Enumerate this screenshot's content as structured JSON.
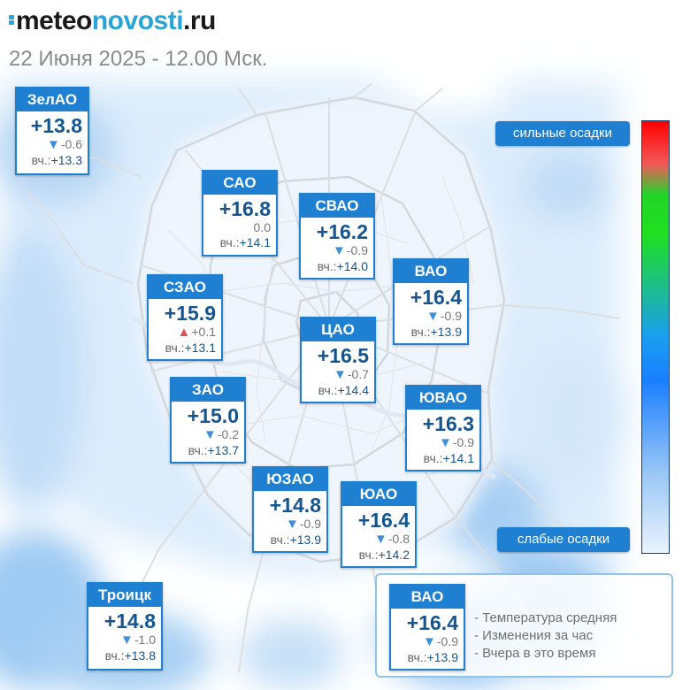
{
  "header": {
    "logo_part1": "meteo",
    "logo_part2": "novosti",
    "logo_part3": ".ru",
    "datetime": "22 Июня 2025 - 12.00 Мск."
  },
  "labels": {
    "yesterday_prefix": "вч.:"
  },
  "districts": [
    {
      "key": "zelao",
      "name": "ЗелАО",
      "temp": "+13.8",
      "change": "-0.6",
      "trend": "down",
      "yesterday": "+13.3"
    },
    {
      "key": "sao",
      "name": "САО",
      "temp": "+16.8",
      "change": "0.0",
      "trend": "none",
      "yesterday": "+14.1"
    },
    {
      "key": "svao",
      "name": "СВАО",
      "temp": "+16.2",
      "change": "-0.9",
      "trend": "down",
      "yesterday": "+14.0"
    },
    {
      "key": "vao",
      "name": "ВАО",
      "temp": "+16.4",
      "change": "-0.9",
      "trend": "down",
      "yesterday": "+13.9"
    },
    {
      "key": "szao",
      "name": "СЗАО",
      "temp": "+15.9",
      "change": "+0.1",
      "trend": "up",
      "yesterday": "+13.1"
    },
    {
      "key": "cao",
      "name": "ЦАО",
      "temp": "+16.5",
      "change": "-0.7",
      "trend": "down",
      "yesterday": "+14.4"
    },
    {
      "key": "zao",
      "name": "ЗАО",
      "temp": "+15.0",
      "change": "-0.2",
      "trend": "down",
      "yesterday": "+13.7"
    },
    {
      "key": "yuvao",
      "name": "ЮВАО",
      "temp": "+16.3",
      "change": "-0.9",
      "trend": "down",
      "yesterday": "+14.1"
    },
    {
      "key": "yuzao",
      "name": "ЮЗАО",
      "temp": "+14.8",
      "change": "-0.9",
      "trend": "down",
      "yesterday": "+13.9"
    },
    {
      "key": "yuao",
      "name": "ЮАО",
      "temp": "+16.4",
      "change": "-0.8",
      "trend": "down",
      "yesterday": "+14.2"
    },
    {
      "key": "troitsk",
      "name": "Троицк",
      "temp": "+14.8",
      "change": "-1.0",
      "trend": "down",
      "yesterday": "+13.8"
    }
  ],
  "scale": {
    "top_label": "сильные осадки",
    "bottom_label": "слабые осадки",
    "colors": [
      "#ff0000",
      "#f05a5a",
      "#22d42a",
      "#1a9ef0",
      "#1a7fff",
      "#9cc8f5",
      "#e9f3fd"
    ]
  },
  "legend": {
    "example": {
      "name": "ВАО",
      "temp": "+16.4",
      "change": "-0.9",
      "trend": "down",
      "yesterday": "+13.9"
    },
    "items": [
      "- Температура средняя",
      "- Изменения за час",
      "- Вчера в это время"
    ]
  },
  "colors": {
    "accent": "#1f7fd0",
    "temp_text": "#14558f",
    "brand": "#2aa3d6",
    "down_arrow": "#3f8fd8",
    "up_arrow": "#e05050",
    "date_text": "#8b8b8b"
  },
  "icons": {
    "trend_down": "triangle-down-icon",
    "trend_up": "triangle-up-icon"
  }
}
